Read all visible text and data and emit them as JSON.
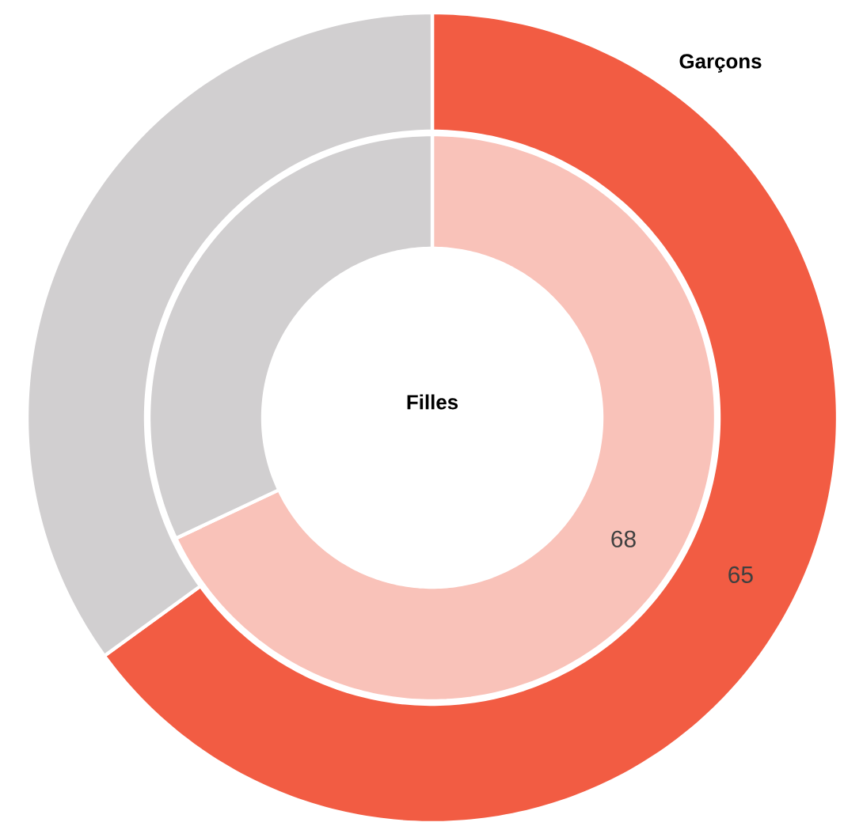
{
  "chart_data": [
    {
      "type": "donut",
      "title": "Garçons",
      "categories": [
        null,
        null
      ],
      "values": [
        65,
        35
      ],
      "colors": [
        "#f25c43",
        "#d1cfd0"
      ],
      "value_labels": [
        "65",
        null
      ]
    },
    {
      "type": "donut",
      "title": "Filles",
      "categories": [
        null,
        null
      ],
      "values": [
        68,
        32
      ],
      "colors": [
        "#f9c2b9",
        "#d1cfd0"
      ],
      "value_labels": [
        "68",
        null
      ]
    }
  ]
}
